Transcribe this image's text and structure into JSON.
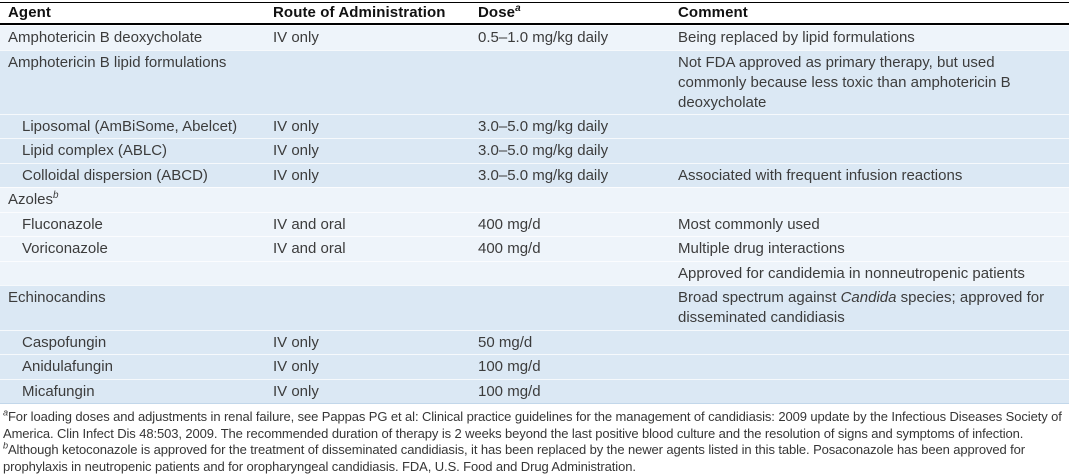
{
  "colors": {
    "band_light": "#eef4fa",
    "band_dark": "#dbe8f4",
    "rule_black": "#000000",
    "table_bottom_rule": "#c2d7ea"
  },
  "table": {
    "headers": {
      "agent": "Agent",
      "route": "Route of Administration",
      "dose": "Dose",
      "dose_sup": "a",
      "comment": "Comment"
    },
    "rows": [
      {
        "agent": "Amphotericin B deoxycholate",
        "route": "IV only",
        "dose": "0.5–1.0 mg/kg daily",
        "comment": "Being replaced by lipid formulations"
      },
      {
        "agent": "Amphotericin B lipid formulations",
        "comment": "Not FDA approved as primary therapy, but used commonly because less toxic than amphotericin B deoxycholate"
      },
      {
        "agent": "Liposomal (AmBiSome, Abelcet)",
        "route": "IV only",
        "dose": "3.0–5.0 mg/kg daily"
      },
      {
        "agent": "Lipid complex (ABLC)",
        "route": "IV only",
        "dose": "3.0–5.0 mg/kg daily"
      },
      {
        "agent": "Colloidal dispersion (ABCD)",
        "route": "IV only",
        "dose": "3.0–5.0 mg/kg daily",
        "comment": "Associated with frequent infusion reactions"
      },
      {
        "agent": "Azoles",
        "agent_sup": "b"
      },
      {
        "agent": "Fluconazole",
        "route": "IV and oral",
        "dose": "400 mg/d",
        "comment": "Most commonly used"
      },
      {
        "agent": "Voriconazole",
        "route": "IV and oral",
        "dose": "400 mg/d",
        "comment": "Multiple drug interactions"
      },
      {
        "comment": "Approved for candidemia in nonneutropenic patients"
      },
      {
        "agent": "Echinocandins",
        "comment_pre": "Broad spectrum against ",
        "comment_italic": "Candida",
        "comment_post": " species; approved for disseminated candidiasis"
      },
      {
        "agent": "Caspofungin",
        "route": "IV only",
        "dose": "50 mg/d"
      },
      {
        "agent": "Anidulafungin",
        "route": "IV only",
        "dose": "100 mg/d"
      },
      {
        "agent": "Micafungin",
        "route": "IV only",
        "dose": "100 mg/d"
      }
    ]
  },
  "footnotes": {
    "a_sup": "a",
    "a_text": "For loading doses and adjustments in renal failure, see Pappas PG et al: Clinical practice guidelines for the management of candidiasis: 2009 update by the Infectious Diseases Society of America. Clin Infect Dis 48:503, 2009. The recommended duration of therapy is 2 weeks beyond the last positive blood culture and the resolution of signs and symptoms of infection.  ",
    "b_sup": "b",
    "b_text": "Although ketoconazole is approved for the treatment of disseminated candidiasis, it has been replaced by the newer agents listed in this table. Posaconazole has been approved for prophylaxis in neutropenic patients and for oropharyngeal candidiasis. FDA, U.S. Food and Drug Administration."
  }
}
